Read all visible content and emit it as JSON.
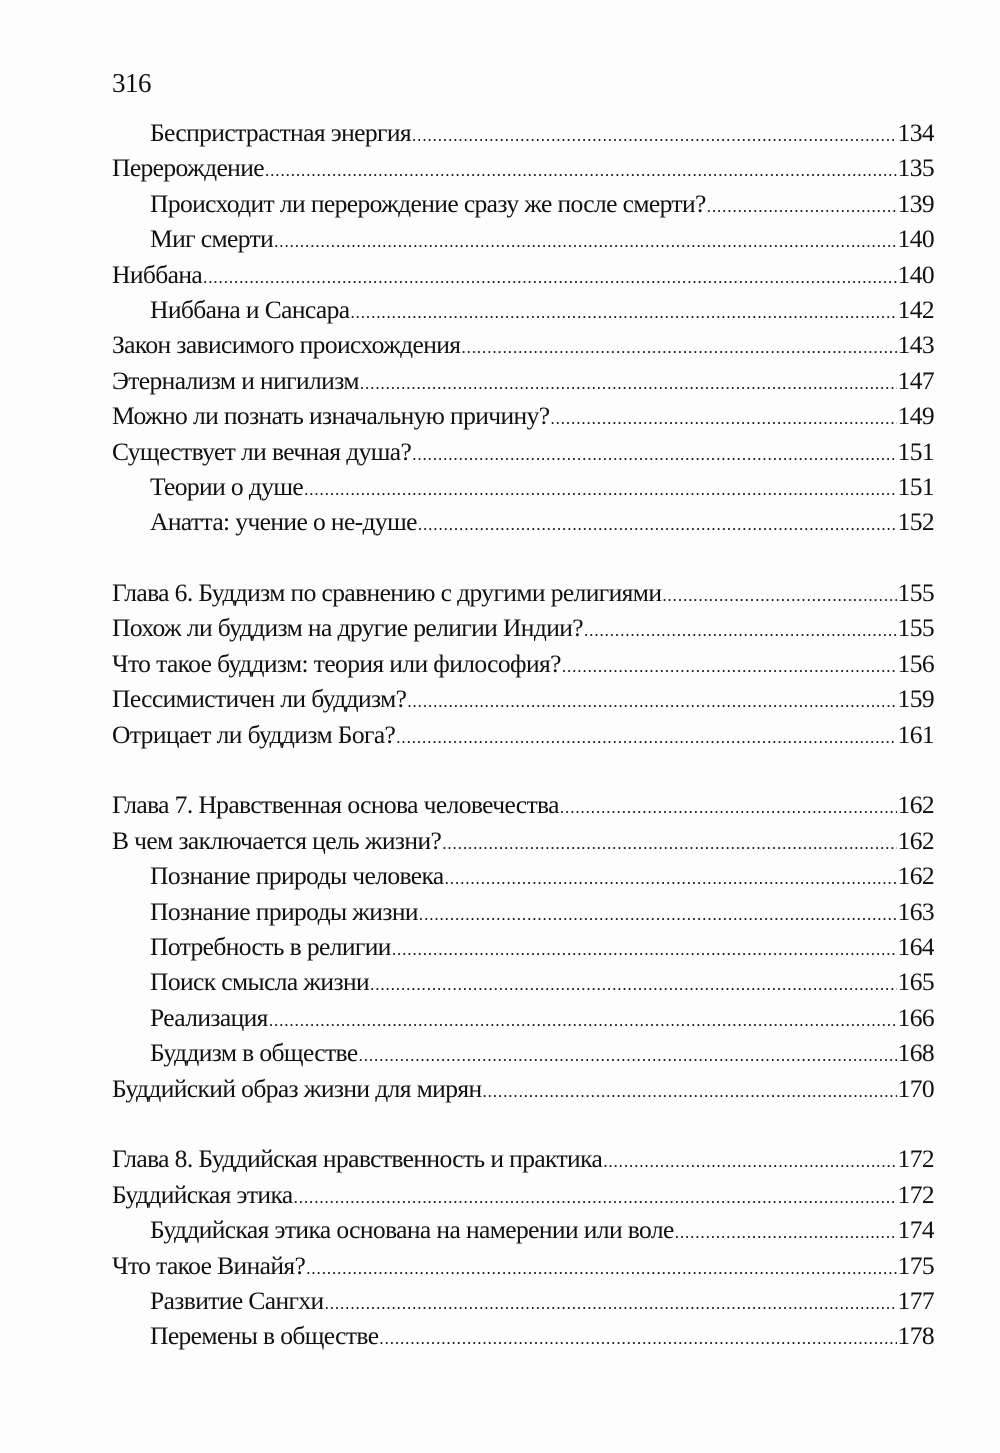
{
  "page_number": "316",
  "groups": [
    {
      "entries": [
        {
          "title": "Беспристрастная энергия",
          "page": "134",
          "level": 2
        },
        {
          "title": "Перерождение",
          "page": "135",
          "level": 1
        },
        {
          "title": "Происходит ли перерождение сразу же после смерти?",
          "page": "139",
          "level": 2
        },
        {
          "title": "Миг смерти",
          "page": "140",
          "level": 2
        },
        {
          "title": "Ниббана",
          "page": "140",
          "level": 1
        },
        {
          "title": "Ниббана и Сансара",
          "page": "142",
          "level": 2
        },
        {
          "title": "Закон зависимого происхождения",
          "page": "143",
          "level": 1
        },
        {
          "title": "Этернализм и нигилизм",
          "page": "147",
          "level": 1
        },
        {
          "title": "Можно ли познать изначальную причину?",
          "page": "149",
          "level": 1
        },
        {
          "title": "Существует ли вечная душа?",
          "page": "151",
          "level": 1
        },
        {
          "title": "Теории о душе",
          "page": "151",
          "level": 2
        },
        {
          "title": "Анатта: учение о не-душе",
          "page": "152",
          "level": 2
        }
      ]
    },
    {
      "entries": [
        {
          "title": "Глава 6. Буддизм по сравнению с другими религиями",
          "page": "155",
          "level": 1
        },
        {
          "title": "Похож ли буддизм на другие религии Индии?",
          "page": "155",
          "level": 1
        },
        {
          "title": "Что такое буддизм: теория или философия?",
          "page": "156",
          "level": 1
        },
        {
          "title": "Пессимистичен ли буддизм?",
          "page": "159",
          "level": 1
        },
        {
          "title": "Отрицает ли буддизм Бога?",
          "page": "161",
          "level": 1
        }
      ]
    },
    {
      "entries": [
        {
          "title": "Глава 7. Нравственная основа человечества",
          "page": "162",
          "level": 1
        },
        {
          "title": "В чем заключается цель жизни?",
          "page": "162",
          "level": 1
        },
        {
          "title": "Познание природы человека",
          "page": "162",
          "level": 2
        },
        {
          "title": "Познание природы жизни",
          "page": "163",
          "level": 2
        },
        {
          "title": "Потребность в религии",
          "page": "164",
          "level": 2
        },
        {
          "title": "Поиск смысла жизни",
          "page": "165",
          "level": 2
        },
        {
          "title": "Реализация",
          "page": "166",
          "level": 2
        },
        {
          "title": "Буддизм в обществе",
          "page": "168",
          "level": 2
        },
        {
          "title": "Буддийский образ жизни для мирян",
          "page": "170",
          "level": 1
        }
      ]
    },
    {
      "entries": [
        {
          "title": "Глава 8. Буддийская нравственность и практика",
          "page": "172",
          "level": 1
        },
        {
          "title": "Буддийская этика",
          "page": "172",
          "level": 1
        },
        {
          "title": "Буддийская этика основана на намерении или воле",
          "page": "174",
          "level": 2
        },
        {
          "title": "Что такое Винайя?",
          "page": "175",
          "level": 1
        },
        {
          "title": "Развитие Сангхи",
          "page": "177",
          "level": 2
        },
        {
          "title": "Перемены в обществе",
          "page": "178",
          "level": 2
        }
      ]
    }
  ]
}
